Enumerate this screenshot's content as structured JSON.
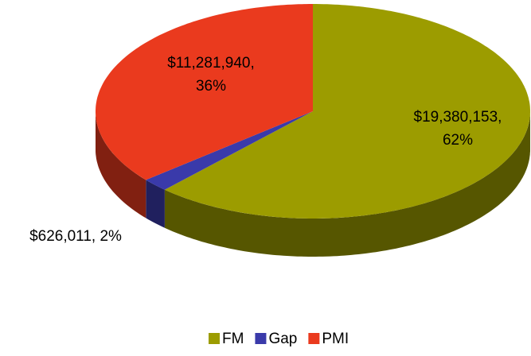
{
  "chart_data": {
    "type": "pie",
    "categories": [
      "FM",
      "Gap",
      "PMI"
    ],
    "values": [
      19380153,
      626011,
      11281940
    ],
    "value_labels": [
      [
        "$19,380,153,",
        "62%"
      ],
      [
        "$626,011, 2%"
      ],
      [
        "$11,281,940,",
        "36%"
      ]
    ],
    "colors": [
      "#9c9c00",
      "#3a3aaa",
      "#ea3a1e"
    ],
    "legend": "bottom"
  }
}
